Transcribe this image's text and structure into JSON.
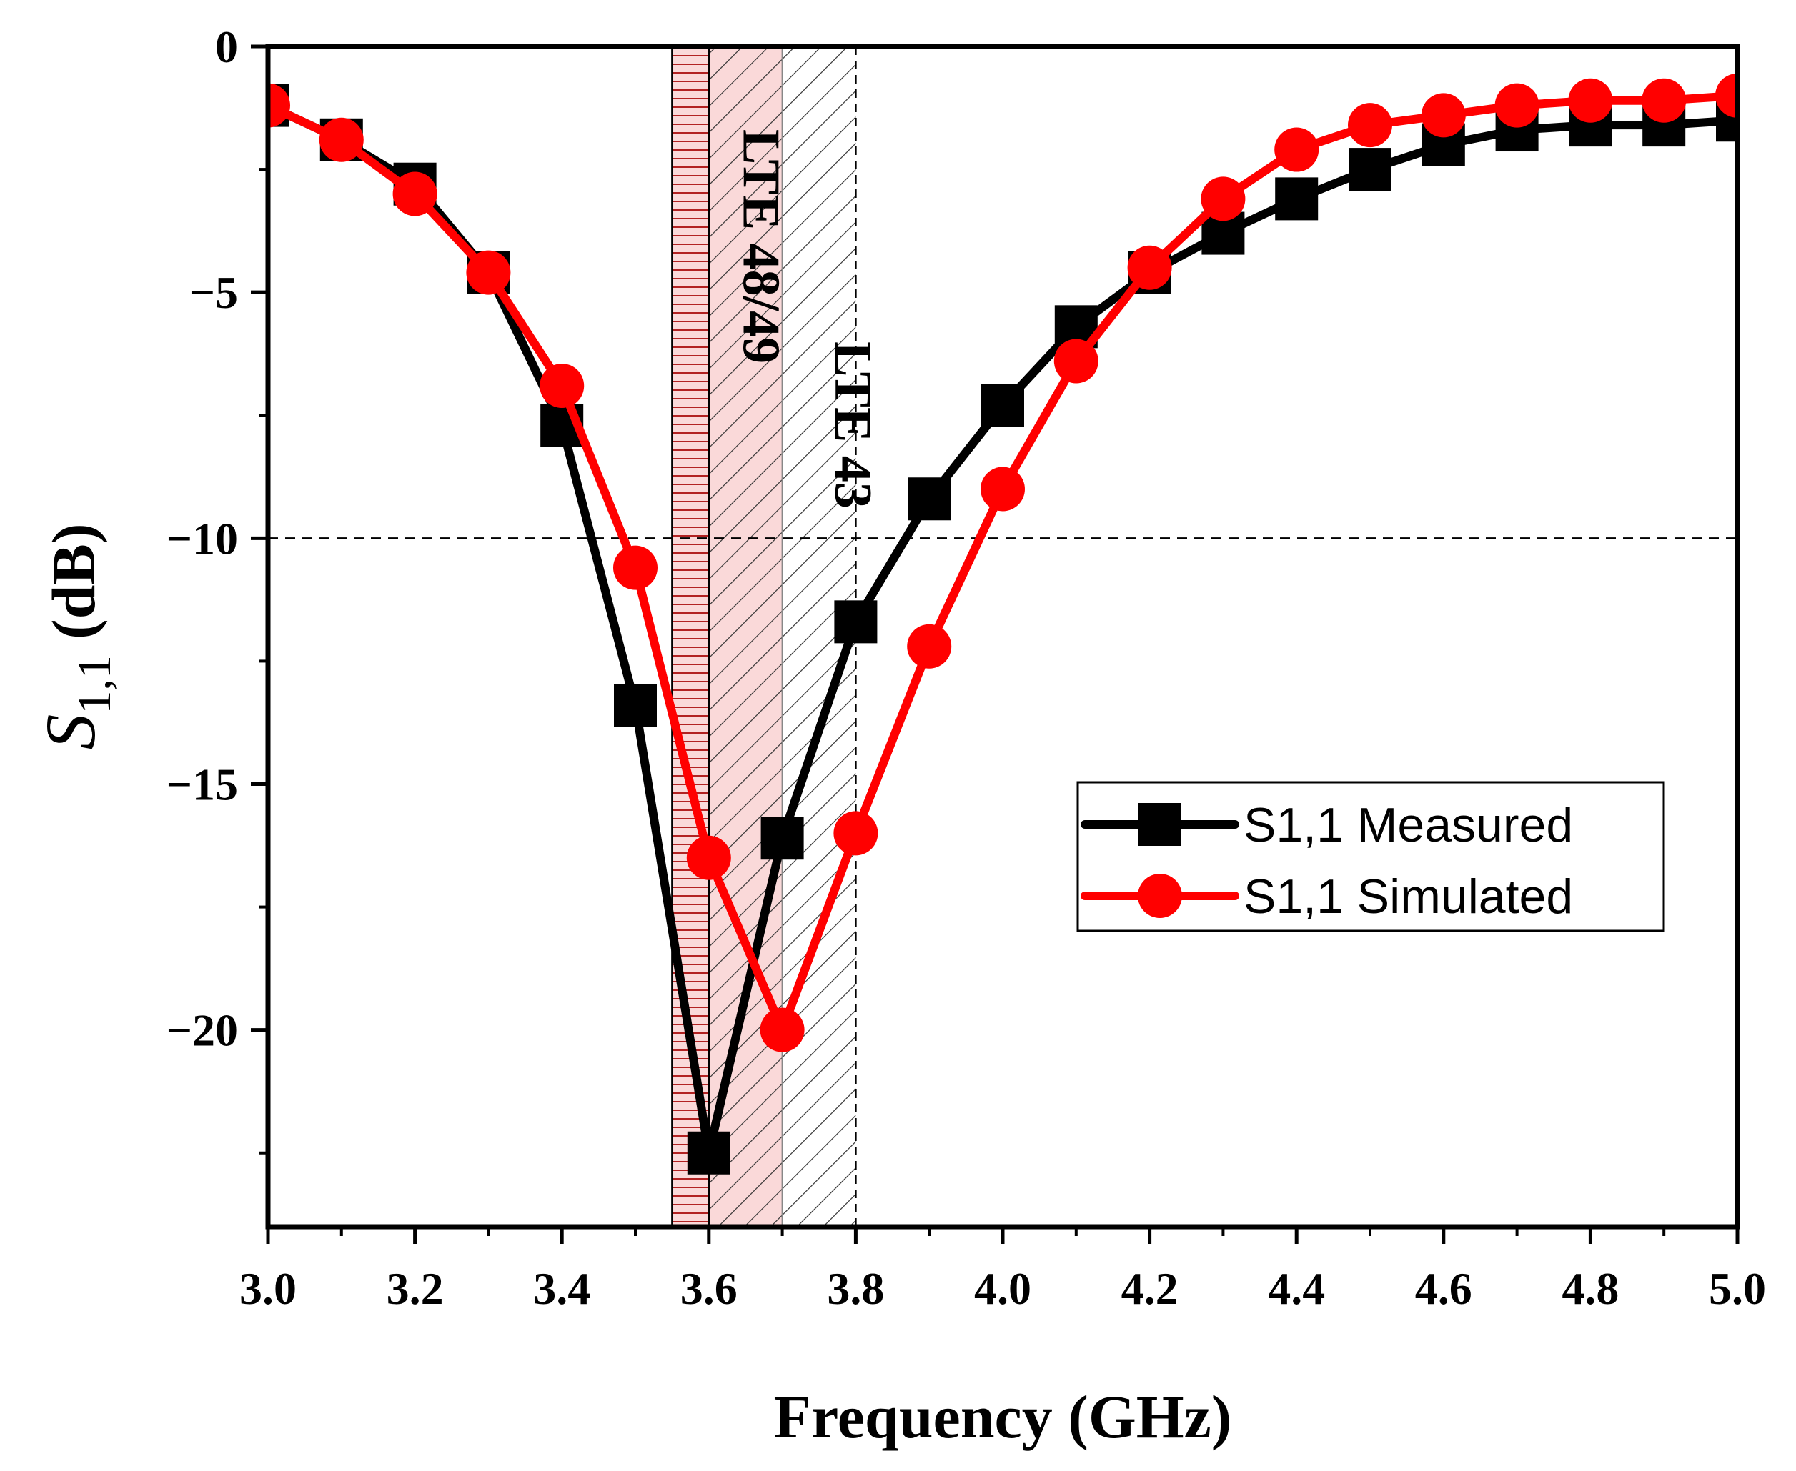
{
  "chart_data": {
    "type": "line",
    "title": "",
    "xlabel": "Frequency (GHz)",
    "ylabel": "S1,1 (dB)",
    "ylabel_main": "S",
    "ylabel_sub": "1,1",
    "ylabel_unit": "(dB)",
    "xlim": [
      3.0,
      5.0
    ],
    "ylim": [
      -24,
      0
    ],
    "x_ticks": [
      3.0,
      3.2,
      3.4,
      3.6,
      3.8,
      4.0,
      4.2,
      4.4,
      4.6,
      4.8,
      5.0
    ],
    "x_tick_labels": [
      "3.0",
      "3.2",
      "3.4",
      "3.6",
      "3.8",
      "4.0",
      "4.2",
      "4.4",
      "4.6",
      "4.8",
      "5.0"
    ],
    "y_ticks": [
      0,
      -5,
      -10,
      -15,
      -20
    ],
    "y_tick_labels": [
      "0",
      "−5",
      "−10",
      "−15",
      "−20"
    ],
    "reference_line": {
      "y": -10,
      "style": "dashed"
    },
    "bands": [
      {
        "label": "LTE 48/49",
        "x_start": 3.55,
        "x_end": 3.7,
        "color": "#f08080"
      },
      {
        "label": "LTE 43",
        "x_start": 3.6,
        "x_end": 3.8,
        "color": "#000000"
      }
    ],
    "x": [
      3.0,
      3.1,
      3.2,
      3.3,
      3.4,
      3.5,
      3.6,
      3.7,
      3.8,
      3.9,
      4.0,
      4.1,
      4.2,
      4.3,
      4.4,
      4.5,
      4.6,
      4.7,
      4.8,
      4.9,
      5.0
    ],
    "series": [
      {
        "name": "S1,1 Measured",
        "color": "#000000",
        "marker": "square",
        "values": [
          -1.2,
          -1.9,
          -2.8,
          -4.6,
          -7.7,
          -13.4,
          -22.5,
          -16.1,
          -11.7,
          -9.2,
          -7.3,
          -5.7,
          -4.6,
          -3.8,
          -3.1,
          -2.5,
          -2.0,
          -1.7,
          -1.6,
          -1.6,
          -1.5
        ]
      },
      {
        "name": "S1,1 Simulated",
        "color": "#ff0000",
        "marker": "circle",
        "values": [
          -1.2,
          -1.9,
          -3.0,
          -4.6,
          -6.9,
          -10.6,
          -16.5,
          -20.0,
          -16.0,
          -12.2,
          -9.0,
          -6.4,
          -4.5,
          -3.1,
          -2.1,
          -1.6,
          -1.4,
          -1.2,
          -1.1,
          -1.1,
          -1.0
        ]
      }
    ],
    "legend": {
      "position": "right-middle",
      "entries": [
        "S1,1 Measured",
        "S1,1 Simulated"
      ]
    }
  }
}
